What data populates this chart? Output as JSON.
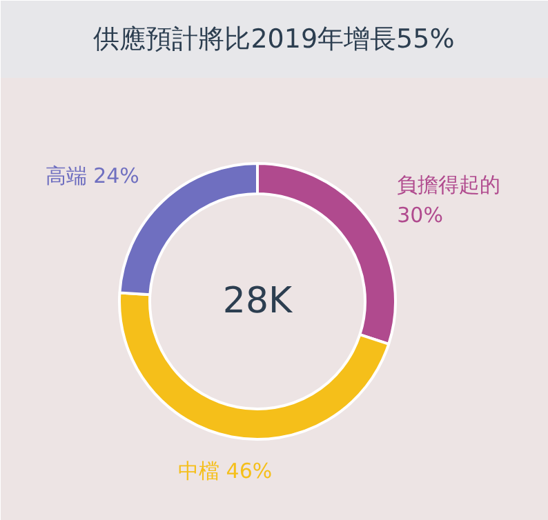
{
  "chart_data": {
    "type": "donut",
    "title": "供應預計將比2019年增長55%",
    "categories": [
      "負擔得起的",
      "中檔",
      "高端"
    ],
    "values": [
      30,
      46,
      24
    ],
    "colors": [
      "#b04a8e",
      "#f5bf1a",
      "#6f6fc0"
    ],
    "value_labels": [
      "30%",
      "46%",
      "24%"
    ],
    "annotations": [
      "28K"
    ]
  }
}
